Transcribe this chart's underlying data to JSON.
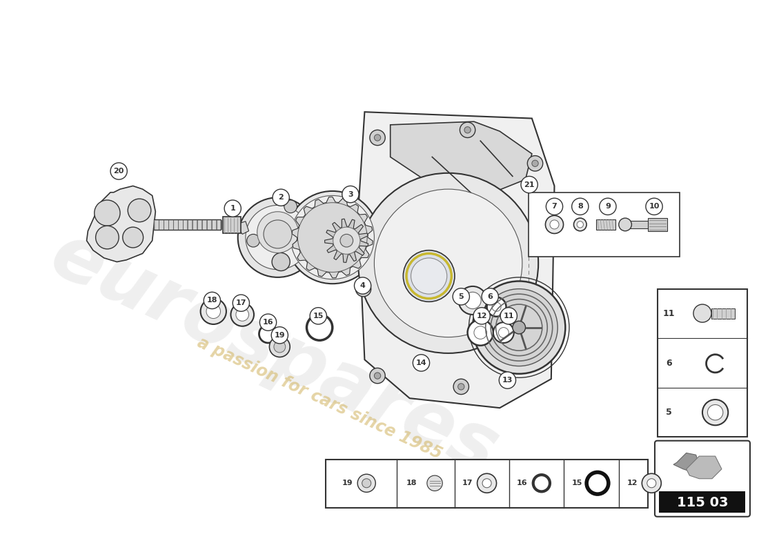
{
  "background_color": "#ffffff",
  "part_number": "115 03",
  "watermark1": "eurospares",
  "watermark2": "a passion for cars since 1985",
  "wm_color": "#cccccc",
  "wm_color2": "#d4b86a",
  "label_color": "#111111",
  "line_color": "#333333"
}
